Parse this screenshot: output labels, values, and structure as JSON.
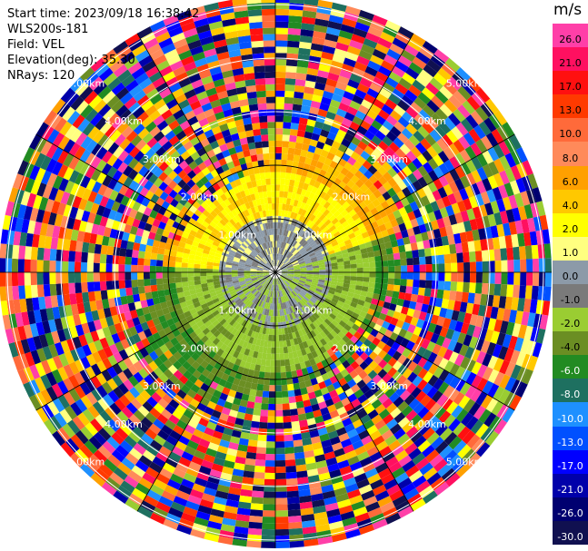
{
  "info": {
    "start_time": "Start time: 2023/09/18 16:38:42",
    "site": "WLS200s-181",
    "field": "Field: VEL",
    "elevation": "Elevation(deg): 35.30",
    "nrays": "NRays: 120"
  },
  "colorbar": {
    "unit": "m/s",
    "levels": [
      {
        "label": "26.0",
        "color": "#ff3fa8"
      },
      {
        "label": "21.0",
        "color": "#ff1060"
      },
      {
        "label": "17.0",
        "color": "#ff1010"
      },
      {
        "label": "13.0",
        "color": "#ff3a00"
      },
      {
        "label": "10.0",
        "color": "#ff6a3a"
      },
      {
        "label": "8.0",
        "color": "#ff8a5a"
      },
      {
        "label": "6.0",
        "color": "#ffa000"
      },
      {
        "label": "4.0",
        "color": "#ffc800"
      },
      {
        "label": "2.0",
        "color": "#ffff00"
      },
      {
        "label": "1.0",
        "color": "#ffff80"
      },
      {
        "label": "0.0",
        "color": "#8c9aa8"
      },
      {
        "label": "-1.0",
        "color": "#7a7a7a"
      },
      {
        "label": "-2.0",
        "color": "#9acd32"
      },
      {
        "label": "-4.0",
        "color": "#6b8e23"
      },
      {
        "label": "-6.0",
        "color": "#228b22"
      },
      {
        "label": "-8.0",
        "color": "#1e7060"
      },
      {
        "label": "-10.0",
        "color": "#1e90ff"
      },
      {
        "label": "-13.0",
        "color": "#0050ff"
      },
      {
        "label": "-17.0",
        "color": "#0000ff"
      },
      {
        "label": "-21.0",
        "color": "#0000aa"
      },
      {
        "label": "-26.0",
        "color": "#000070"
      },
      {
        "label": "-30.0",
        "color": "#101050"
      }
    ]
  },
  "range_rings": {
    "labels": [
      "1.00km",
      "2.00km",
      "3.00km",
      "4.00km",
      "5.00km"
    ]
  }
}
